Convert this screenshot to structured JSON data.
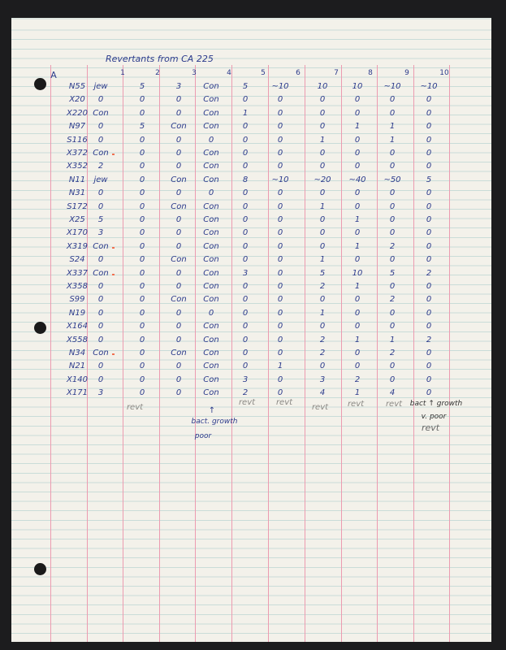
{
  "title": "Revertants from CA 225",
  "section_label": "A",
  "column_headers": [
    "1",
    "2",
    "3",
    "4",
    "5",
    "6",
    "7",
    "8",
    "9",
    "10"
  ],
  "rows": [
    {
      "strain": "N55",
      "values": [
        "jew",
        "5",
        "3",
        "Con",
        "5",
        "~10",
        "10",
        "10",
        "~10",
        "~10"
      ]
    },
    {
      "strain": "X20",
      "values": [
        "0",
        "0",
        "0",
        "Con",
        "0",
        "0",
        "0",
        "0",
        "0",
        "0"
      ]
    },
    {
      "strain": "X220",
      "values": [
        "Con",
        "0",
        "0",
        "Con",
        "1",
        "0",
        "0",
        "0",
        "0",
        "0"
      ]
    },
    {
      "strain": "N97",
      "values": [
        "0",
        "5",
        "Con",
        "Con",
        "0",
        "0",
        "0",
        "1",
        "1",
        "0"
      ]
    },
    {
      "strain": "S116",
      "values": [
        "0",
        "0",
        "0",
        "0",
        "0",
        "0",
        "1",
        "0",
        "1",
        "0"
      ]
    },
    {
      "strain": "X372",
      "values": [
        "Con",
        "0",
        "0",
        "Con",
        "0",
        "0",
        "0",
        "0",
        "0",
        "0"
      ]
    },
    {
      "strain": "X352",
      "values": [
        "2",
        "0",
        "0",
        "Con",
        "0",
        "0",
        "0",
        "0",
        "0",
        "0"
      ]
    },
    {
      "strain": "N11",
      "values": [
        "jew",
        "0",
        "Con",
        "Con",
        "8",
        "~10",
        "~20",
        "~40",
        "~50",
        "5"
      ]
    },
    {
      "strain": "N31",
      "values": [
        "0",
        "0",
        "0",
        "0",
        "0",
        "0",
        "0",
        "0",
        "0",
        "0"
      ]
    },
    {
      "strain": "S172",
      "values": [
        "0",
        "0",
        "Con",
        "Con",
        "0",
        "0",
        "1",
        "0",
        "0",
        "0"
      ]
    },
    {
      "strain": "X25",
      "values": [
        "5",
        "0",
        "0",
        "Con",
        "0",
        "0",
        "0",
        "1",
        "0",
        "0"
      ]
    },
    {
      "strain": "X170",
      "values": [
        "3",
        "0",
        "0",
        "Con",
        "0",
        "0",
        "0",
        "0",
        "0",
        "0"
      ]
    },
    {
      "strain": "X319",
      "values": [
        "Con",
        "0",
        "0",
        "Con",
        "0",
        "0",
        "0",
        "1",
        "2",
        "0"
      ]
    },
    {
      "strain": "S24",
      "values": [
        "0",
        "0",
        "Con",
        "Con",
        "0",
        "0",
        "1",
        "0",
        "0",
        "0"
      ]
    },
    {
      "strain": "X337",
      "values": [
        "Con",
        "0",
        "0",
        "Con",
        "3",
        "0",
        "5",
        "10",
        "5",
        "2"
      ]
    },
    {
      "strain": "X358",
      "values": [
        "0",
        "0",
        "0",
        "Con",
        "0",
        "0",
        "2",
        "1",
        "0",
        "0"
      ]
    },
    {
      "strain": "S99",
      "values": [
        "0",
        "0",
        "Con",
        "Con",
        "0",
        "0",
        "0",
        "0",
        "2",
        "0"
      ]
    },
    {
      "strain": "N19",
      "values": [
        "0",
        "0",
        "0",
        "0",
        "0",
        "0",
        "1",
        "0",
        "0",
        "0"
      ]
    },
    {
      "strain": "X164",
      "values": [
        "0",
        "0",
        "0",
        "Con",
        "0",
        "0",
        "0",
        "0",
        "0",
        "0"
      ]
    },
    {
      "strain": "X558",
      "values": [
        "0",
        "0",
        "0",
        "Con",
        "0",
        "0",
        "2",
        "1",
        "1",
        "2"
      ]
    },
    {
      "strain": "N34",
      "values": [
        "Con",
        "0",
        "Con",
        "Con",
        "0",
        "0",
        "2",
        "0",
        "2",
        "0"
      ]
    },
    {
      "strain": "N21",
      "values": [
        "0",
        "0",
        "0",
        "Con",
        "0",
        "1",
        "0",
        "0",
        "0",
        "0"
      ]
    },
    {
      "strain": "X140",
      "values": [
        "0",
        "0",
        "0",
        "Con",
        "3",
        "0",
        "3",
        "2",
        "0",
        "0"
      ]
    },
    {
      "strain": "X171",
      "values": [
        "3",
        "0",
        "0",
        "Con",
        "2",
        "0",
        "4",
        "1",
        "4",
        "0"
      ]
    }
  ],
  "footer_notes": {
    "col2": "revt",
    "col4_arrow": "↑",
    "col4_line1": "bact. growth",
    "col4_line2": "poor",
    "col5": "revt",
    "col6": "revt",
    "col7": "revt",
    "col8": "revt",
    "col9": "revt",
    "col10_line1": "bact ↑ growth",
    "col10_line2": "v. poor",
    "col10_line3": "revt"
  },
  "colors": {
    "ink": "#2c3b8c",
    "margin_rule": "#ec9bb0",
    "ruled_line": "#c9dcd8",
    "paper": "#f3f1ea"
  }
}
